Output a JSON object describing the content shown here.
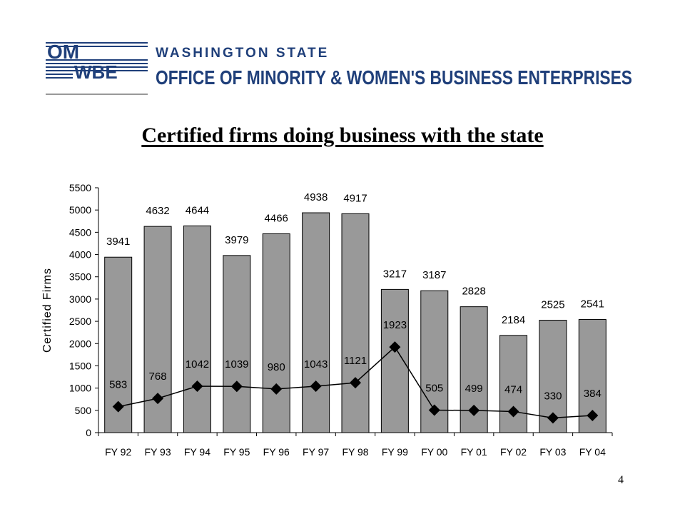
{
  "header": {
    "logo_mark_top": "OM",
    "logo_mark_bottom": "WBE",
    "org_line1": "WASHINGTON STATE",
    "org_line2": "OFFICE OF MINORITY & WOMEN'S BUSINESS ENTERPRISES"
  },
  "slide": {
    "title": "Certified firms doing business with the state",
    "page_number": "4"
  },
  "chart_data": {
    "type": "bar",
    "title": "",
    "xlabel": "",
    "ylabel": "Certified Firms",
    "ylim": [
      0,
      5500
    ],
    "yticks": [
      0,
      500,
      1000,
      1500,
      2000,
      2500,
      3000,
      3500,
      4000,
      4500,
      5000,
      5500
    ],
    "grid": false,
    "categories": [
      "FY 92",
      "FY 93",
      "FY 94",
      "FY 95",
      "FY 96",
      "FY 97",
      "FY 98",
      "FY 99",
      "FY 00",
      "FY 01",
      "FY 02",
      "FY 03",
      "FY 04"
    ],
    "series": [
      {
        "type": "bar",
        "values": [
          3941,
          4632,
          4644,
          3979,
          4466,
          4938,
          4917,
          3217,
          3187,
          2828,
          2184,
          2525,
          2541
        ],
        "color": "#999999"
      },
      {
        "type": "line",
        "marker": "diamond",
        "values": [
          583,
          768,
          1042,
          1039,
          980,
          1043,
          1121,
          1923,
          505,
          499,
          474,
          330,
          384
        ],
        "color": "#000000"
      }
    ]
  },
  "colors": {
    "logo_blue": "#1f3f7a",
    "bar_fill": "#999999"
  }
}
